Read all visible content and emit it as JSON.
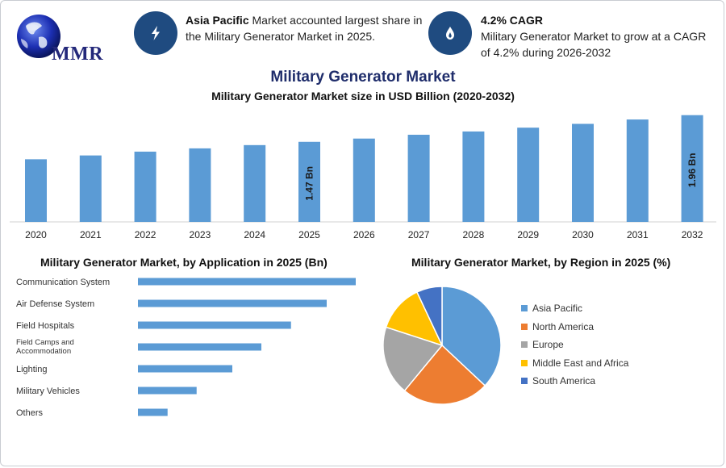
{
  "logo": {
    "text": "MMR"
  },
  "info_boxes": [
    {
      "icon": "lightning-icon",
      "bold": "Asia Pacific",
      "line1_rest": " Market accounted largest share in",
      "line2": "the Military Generator Market in 2025."
    },
    {
      "icon": "flame-drop-icon",
      "bold": "4.2% CAGR",
      "line1_rest": "",
      "line2": "Military Generator Market to grow at a CAGR",
      "line3": "of 4.2% during 2026-2032"
    }
  ],
  "colors": {
    "bar": "#5b9bd5",
    "navy": "#1f4b80",
    "title": "#1f2d6b"
  },
  "titles": {
    "main": "Military Generator Market",
    "sub": "Military Generator Market size in USD Billion (2020-2032)",
    "application": "Military Generator Market, by Application in 2025 (Bn)",
    "region": "Military Generator Market, by Region in 2025 (%)"
  },
  "chart_data": [
    {
      "type": "bar",
      "title": "Military Generator Market size in USD Billion (2020-2032)",
      "categories": [
        "2020",
        "2021",
        "2022",
        "2023",
        "2024",
        "2025",
        "2026",
        "2027",
        "2028",
        "2029",
        "2030",
        "2031",
        "2032"
      ],
      "values": [
        1.15,
        1.22,
        1.29,
        1.35,
        1.41,
        1.47,
        1.53,
        1.6,
        1.66,
        1.73,
        1.8,
        1.88,
        1.96
      ],
      "bar_labels": {
        "5": "1.47 Bn",
        "12": "1.96 Bn"
      },
      "ylim": [
        0,
        2.0
      ]
    },
    {
      "type": "bar",
      "orientation": "horizontal",
      "title": "Military Generator Market, by Application in 2025 (Bn)",
      "categories": [
        "Communication System",
        "Air Defense System",
        "Field Hospitals",
        "Field Camps and Accommodation",
        "Lighting",
        "Military Vehicles",
        "Others"
      ],
      "category_lines": [
        [
          "Communication System"
        ],
        [
          "Air Defense System"
        ],
        [
          "Field Hospitals"
        ],
        [
          "Field Camps and",
          "Accommodation"
        ],
        [
          "Lighting"
        ],
        [
          "Military Vehicles"
        ],
        [
          "Others"
        ]
      ],
      "values": [
        0.36,
        0.312,
        0.253,
        0.204,
        0.156,
        0.097,
        0.049
      ],
      "xlim": [
        0,
        0.36
      ]
    },
    {
      "type": "pie",
      "title": "Military Generator Market, by Region in 2025 (%)",
      "categories": [
        "Asia Pacific",
        "North America",
        "Europe",
        "Middle East and Africa",
        "South America"
      ],
      "values": [
        37,
        24,
        19,
        13,
        7
      ],
      "colors": [
        "#5b9bd5",
        "#ed7d31",
        "#a5a5a5",
        "#ffc000",
        "#4472c4"
      ],
      "legend": "right"
    }
  ]
}
